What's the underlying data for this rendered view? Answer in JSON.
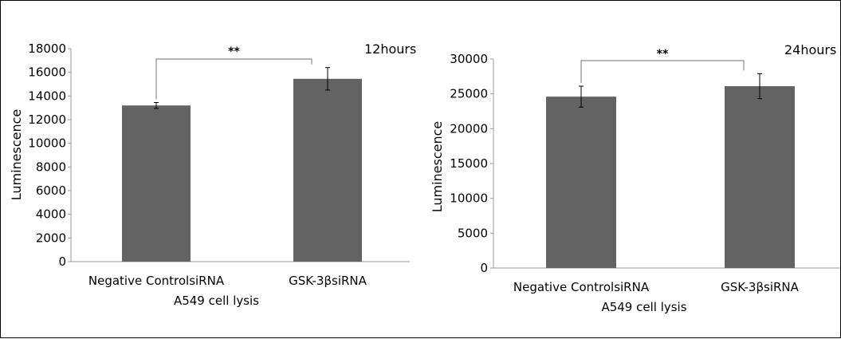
{
  "colors": {
    "bar": "#636363",
    "axis": "#999999",
    "bracket": "#8c8c8c",
    "error_bar": "#000000"
  },
  "chart_data": [
    {
      "type": "bar",
      "title": "12hours",
      "xlabel": "A549 cell lysis",
      "ylabel": "Luminescence",
      "categories": [
        "Negative ControlsiRNA",
        "GSK-3βsiRNA"
      ],
      "values": [
        13200,
        15450
      ],
      "errors": [
        250,
        950
      ],
      "ylim": [
        0,
        18000
      ],
      "yticks": [
        0,
        2000,
        4000,
        6000,
        8000,
        10000,
        12000,
        14000,
        16000,
        18000
      ],
      "grid": false,
      "significance": "**"
    },
    {
      "type": "bar",
      "title": "24hours",
      "xlabel": "A549 cell lysis",
      "ylabel": "Luminescence",
      "categories": [
        "Negative ControlsiRNA",
        "GSK-3βsiRNA"
      ],
      "values": [
        24600,
        26100
      ],
      "errors": [
        1500,
        1800
      ],
      "ylim": [
        0,
        30000
      ],
      "yticks": [
        0,
        5000,
        10000,
        15000,
        20000,
        25000,
        30000
      ],
      "grid": false,
      "significance": "**"
    }
  ]
}
